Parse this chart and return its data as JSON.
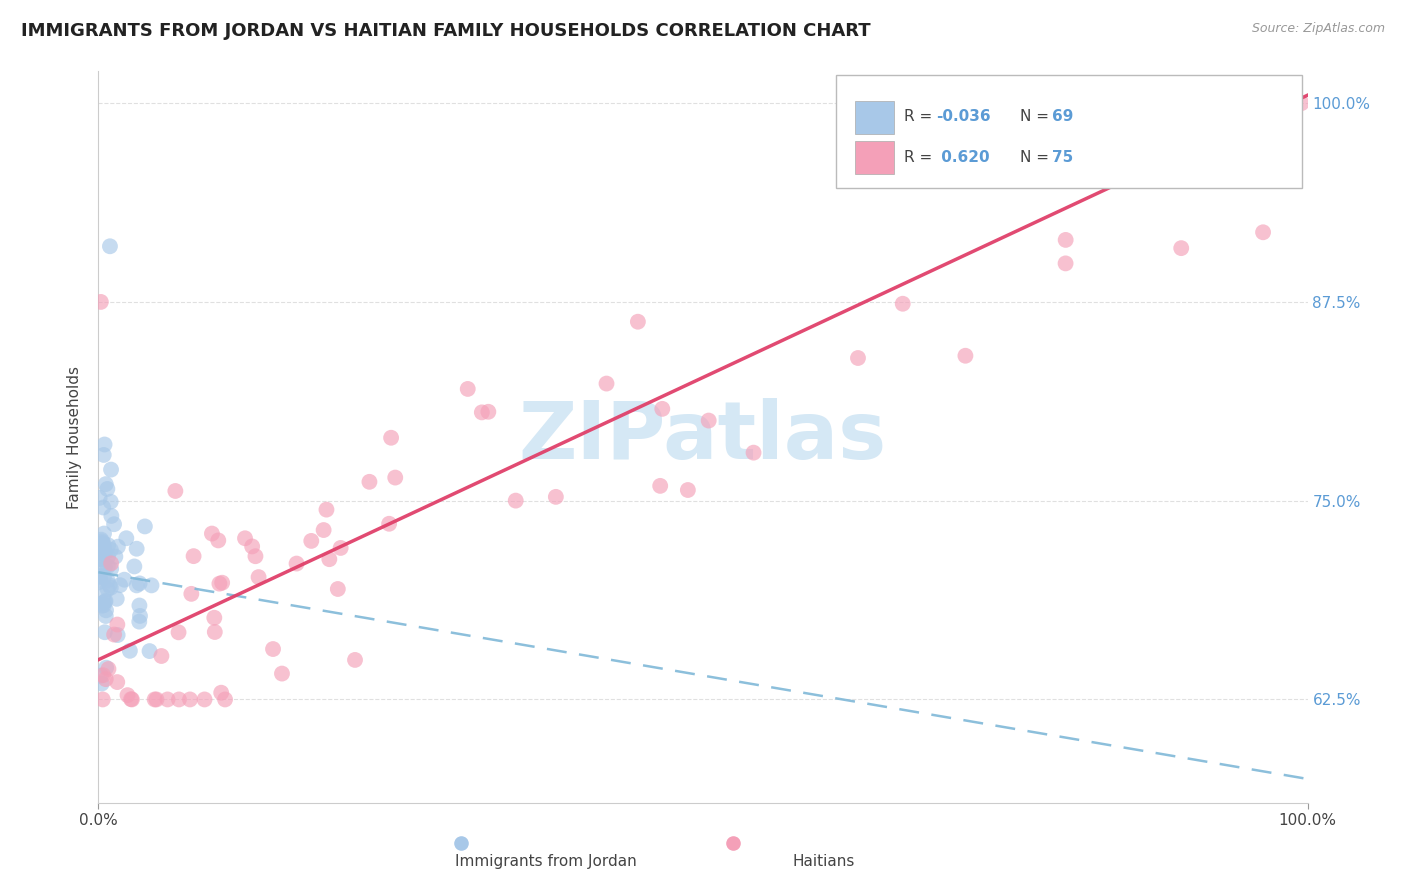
{
  "title": "IMMIGRANTS FROM JORDAN VS HAITIAN FAMILY HOUSEHOLDS CORRELATION CHART",
  "source": "Source: ZipAtlas.com",
  "ylabel": "Family Households",
  "y_ticks": [
    62.5,
    75.0,
    87.5,
    100.0
  ],
  "y_tick_labels": [
    "62.5%",
    "75.0%",
    "87.5%",
    "100.0%"
  ],
  "color_jordan": "#a8c8e8",
  "color_haitian": "#f4a0b8",
  "color_jordan_line": "#80b8d8",
  "color_haitian_line": "#e0406a",
  "background": "#ffffff",
  "grid_color": "#cccccc",
  "watermark": "ZIPatlas",
  "watermark_color": "#d5e8f5",
  "legend_line1_r": "-0.036",
  "legend_line1_n": "69",
  "legend_line2_r": " 0.620",
  "legend_line2_n": "75",
  "bottom_label1": "Immigrants from Jordan",
  "bottom_label2": "Haitians",
  "jordan_trend_x0": 0,
  "jordan_trend_y0": 70.5,
  "jordan_trend_x1": 100,
  "jordan_trend_y1": 57.5,
  "haitian_trend_x0": 0,
  "haitian_trend_y0": 65.0,
  "haitian_trend_x1": 100,
  "haitian_trend_y1": 100.5,
  "xlim": [
    0,
    100
  ],
  "ylim": [
    56.0,
    102.0
  ],
  "title_fontsize": 13,
  "tick_fontsize": 11
}
